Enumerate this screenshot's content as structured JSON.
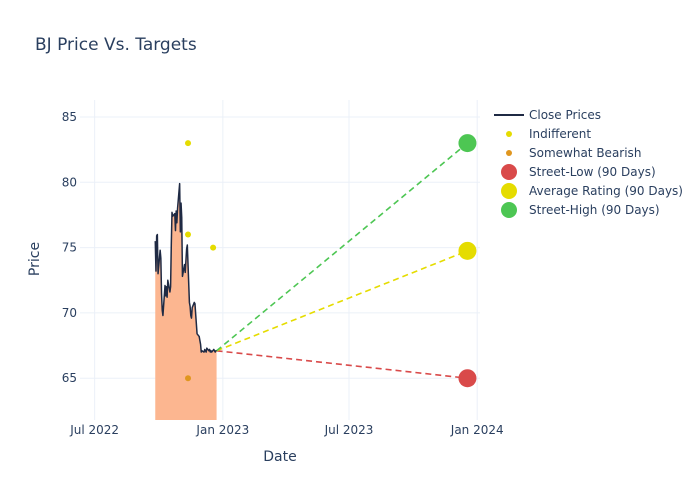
{
  "chart_data": {
    "type": "line",
    "title": "BJ Price Vs. Targets",
    "xlabel": "Date",
    "ylabel": "Price",
    "x_range": [
      "2022-06-10",
      "2024-01-05"
    ],
    "ylim": [
      61.8,
      86.3
    ],
    "x_ticks": [
      {
        "date": "2022-07-01",
        "label": "Jul 2022"
      },
      {
        "date": "2023-01-01",
        "label": "Jan 2023"
      },
      {
        "date": "2023-07-01",
        "label": "Jul 2023"
      },
      {
        "date": "2024-01-01",
        "label": "Jan 2024"
      }
    ],
    "y_ticks": [
      65,
      70,
      75,
      80,
      85
    ],
    "close_prices": {
      "name": "Close Prices",
      "color": "#1f2a44",
      "fill_color": "#fcb690",
      "x": [
        "2022-09-26",
        "2022-09-27",
        "2022-09-28",
        "2022-09-29",
        "2022-09-30",
        "2022-10-03",
        "2022-10-04",
        "2022-10-05",
        "2022-10-06",
        "2022-10-07",
        "2022-10-10",
        "2022-10-11",
        "2022-10-12",
        "2022-10-13",
        "2022-10-14",
        "2022-10-17",
        "2022-10-18",
        "2022-10-19",
        "2022-10-20",
        "2022-10-21",
        "2022-10-24",
        "2022-10-25",
        "2022-10-26",
        "2022-10-27",
        "2022-10-28",
        "2022-10-31",
        "2022-11-01",
        "2022-11-02",
        "2022-11-03",
        "2022-11-04",
        "2022-11-07",
        "2022-11-08",
        "2022-11-09",
        "2022-11-10",
        "2022-11-11",
        "2022-11-14",
        "2022-11-15",
        "2022-11-16",
        "2022-11-17",
        "2022-11-18",
        "2022-11-21",
        "2022-11-22",
        "2022-11-23",
        "2022-11-25",
        "2022-11-28",
        "2022-11-29",
        "2022-11-30",
        "2022-12-01",
        "2022-12-02",
        "2022-12-05",
        "2022-12-06",
        "2022-12-07",
        "2022-12-08",
        "2022-12-09",
        "2022-12-12",
        "2022-12-13",
        "2022-12-14",
        "2022-12-15",
        "2022-12-16",
        "2022-12-19",
        "2022-12-20",
        "2022-12-21",
        "2022-12-22",
        "2022-12-23"
      ],
      "y": [
        75.5,
        73.2,
        75.9,
        76.0,
        73.0,
        74.8,
        74.2,
        71.5,
        70.2,
        69.8,
        72.1,
        71.3,
        72.0,
        71.2,
        72.5,
        71.6,
        72.0,
        75.2,
        77.7,
        77.4,
        77.6,
        76.3,
        77.8,
        76.9,
        78.0,
        79.9,
        76.2,
        78.4,
        77.3,
        72.8,
        73.7,
        73.1,
        74.0,
        74.9,
        75.2,
        70.8,
        70.5,
        69.8,
        69.6,
        70.4,
        70.8,
        70.7,
        69.9,
        68.4,
        68.2,
        67.9,
        67.6,
        67.0,
        67.1,
        67.0,
        67.2,
        67.1,
        67.0,
        67.3,
        67.1,
        67.2,
        67.0,
        67.1,
        67.0,
        67.2,
        67.1,
        67.0,
        67.1,
        67.1
      ]
    },
    "indifferent": {
      "name": "Indifferent",
      "color": "#e5dc00",
      "x": [
        "2022-11-12",
        "2022-11-12",
        "2022-12-18"
      ],
      "y": [
        83.0,
        76.0,
        75.0
      ]
    },
    "somewhat_bearish": {
      "name": "Somewhat Bearish",
      "color": "#e0961f",
      "x": [
        "2022-11-12"
      ],
      "y": [
        65.0
      ]
    },
    "projection_start": {
      "x": "2022-12-23",
      "y": 67.1
    },
    "street_low": {
      "name": "Street-Low (90 Days)",
      "color": "#d94a4a",
      "x": "2023-12-18",
      "y": 65.0
    },
    "average_rating": {
      "name": "Average Rating (90 Days)",
      "color": "#e5dc00",
      "x": "2023-12-18",
      "y": 74.75
    },
    "street_high": {
      "name": "Street-High (90 Days)",
      "color": "#4dc653",
      "x": "2023-12-18",
      "y": 83.0
    },
    "legend": [
      "Close Prices",
      "Indifferent",
      "Somewhat Bearish",
      "Street-Low (90 Days)",
      "Average Rating (90 Days)",
      "Street-High (90 Days)"
    ],
    "legend_position": "right"
  }
}
